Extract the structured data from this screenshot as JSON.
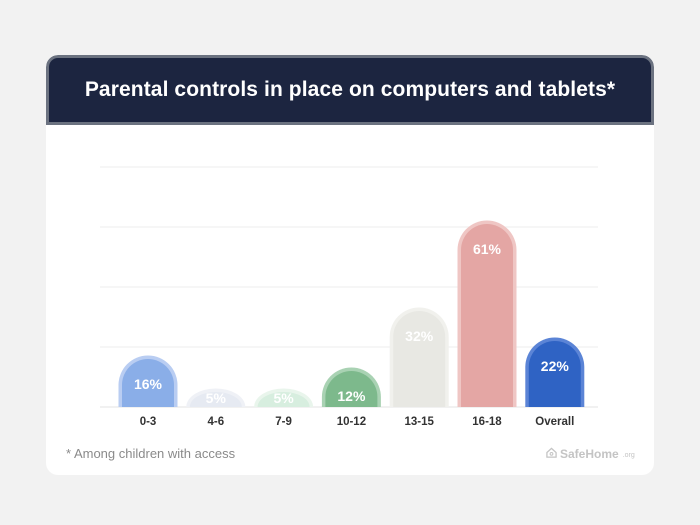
{
  "header": {
    "title": "Parental controls in place on computers and tablets*"
  },
  "footnote": "* Among children with access",
  "brand": {
    "name": "SafeHome",
    "suffix": ".org"
  },
  "chart_data": {
    "type": "bar",
    "title": "Parental controls in place on computers and tablets*",
    "xlabel": "",
    "ylabel": "",
    "ylim": [
      0,
      80
    ],
    "grid": true,
    "categories": [
      "0-3",
      "4-6",
      "7-9",
      "10-12",
      "13-15",
      "16-18",
      "Overall"
    ],
    "values": [
      16,
      5,
      5,
      12,
      32,
      61,
      22
    ],
    "value_labels": [
      "16%",
      "5%",
      "5%",
      "12%",
      "32%",
      "61%",
      "22%"
    ],
    "colors": {
      "fill": [
        "#8aaee8",
        "#e6eaf2",
        "#d7eedf",
        "#7db98c",
        "#e8e8e3",
        "#e4a6a4",
        "#2f63c4"
      ],
      "outline": [
        "#b9cdf2",
        "#eff1f6",
        "#e9f5ec",
        "#a9d2b3",
        "#f1f1ed",
        "#efc6c4",
        "#5b84d6"
      ]
    }
  }
}
